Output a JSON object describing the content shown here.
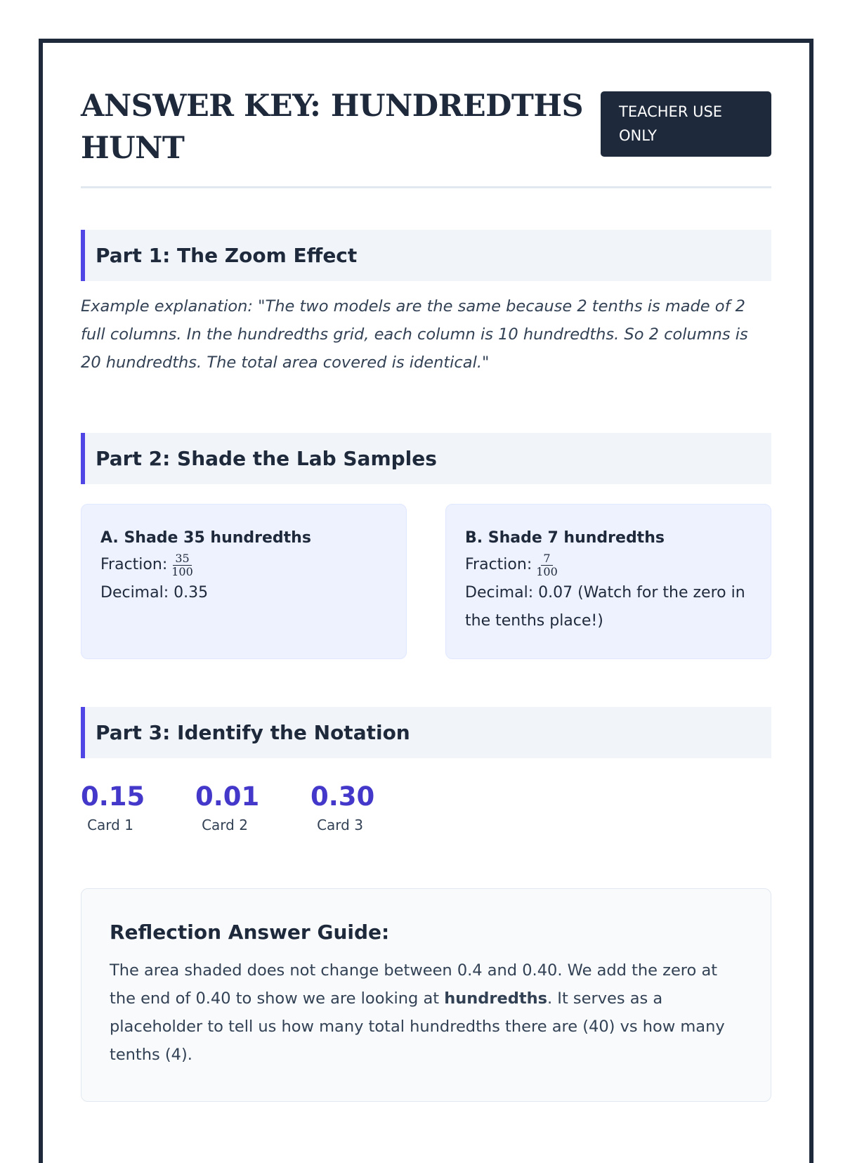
{
  "title": "ANSWER KEY: HUNDREDTHS HUNT",
  "badge": "TEACHER USE ONLY",
  "part1": {
    "heading": "Part 1: The Zoom Effect",
    "text": "Example explanation: \"The two models are the same because 2 tenths is made of 2 full columns. In the hundredths grid, each column is 10 hundredths. So 2 columns is 20 hundredths. The total area covered is identical.\""
  },
  "part2": {
    "heading": "Part 2: Shade the Lab Samples",
    "cards": [
      {
        "title": "A. Shade 35 hundredths",
        "fraction_label": "Fraction:",
        "numerator": "35",
        "denominator": "100",
        "decimal": "Decimal: 0.35"
      },
      {
        "title": "B. Shade 7 hundredths",
        "fraction_label": "Fraction:",
        "numerator": "7",
        "denominator": "100",
        "decimal": "Decimal: 0.07 (Watch for the zero in the tenths place!)"
      }
    ]
  },
  "part3": {
    "heading": "Part 3: Identify the Notation",
    "cards": [
      {
        "value": "0.15",
        "label": "Card 1"
      },
      {
        "value": "0.01",
        "label": "Card 2"
      },
      {
        "value": "0.30",
        "label": "Card 3"
      }
    ]
  },
  "reflection": {
    "heading": "Reflection Answer Guide:",
    "text_before": "The area shaded does not change between 0.4 and 0.40. We add the zero at the end of 0.40 to show we are looking at ",
    "bold": "hundredths",
    "text_after": ". It serves as a placeholder to tell us how many total hundredths there are (40) vs how many tenths (4)."
  },
  "colors": {
    "accent": "#4f46e5",
    "number": "#4338ca",
    "dark": "#1e293b"
  }
}
